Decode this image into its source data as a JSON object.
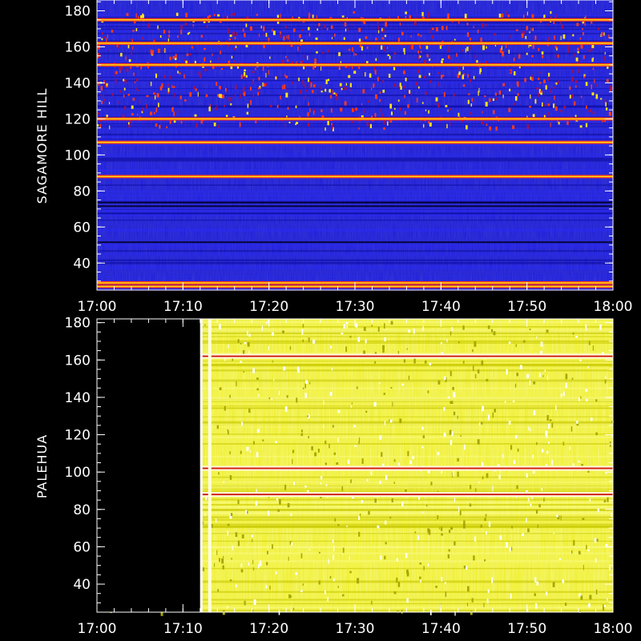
{
  "chart_data": [
    {
      "type": "heatmap",
      "ylabel": "SAGAMORE  HILL",
      "x_ticks": [
        "17:00",
        "17:10",
        "17:20",
        "17:30",
        "17:40",
        "17:50",
        "18:00"
      ],
      "xlim": [
        "17:00",
        "18:00"
      ],
      "y_ticks": [
        40,
        60,
        80,
        100,
        120,
        140,
        160,
        180
      ],
      "ylim": [
        25,
        180
      ],
      "grid": false,
      "colors": {
        "background": "#1a1adb",
        "hot": "#ff3b1a",
        "peak": "#ffe41a"
      },
      "data_gap": null,
      "bright_bands_mhz": [
        27,
        29,
        88,
        107,
        120,
        150,
        162,
        175
      ]
    },
    {
      "type": "heatmap",
      "ylabel": "PALEHUA",
      "x_ticks": [
        "17:00",
        "17:10",
        "17:20",
        "17:30",
        "17:40",
        "17:50",
        "18:00"
      ],
      "xlim": [
        "17:00",
        "18:00"
      ],
      "y_ticks": [
        40,
        60,
        80,
        100,
        120,
        140,
        160,
        180
      ],
      "ylim": [
        25,
        180
      ],
      "grid": false,
      "colors": {
        "background": "#eded1a",
        "dim": "#b8b800",
        "hot": "#d02010"
      },
      "data_gap": [
        "17:00",
        "17:12"
      ],
      "bright_bands_mhz": [
        88,
        102,
        162
      ]
    }
  ]
}
